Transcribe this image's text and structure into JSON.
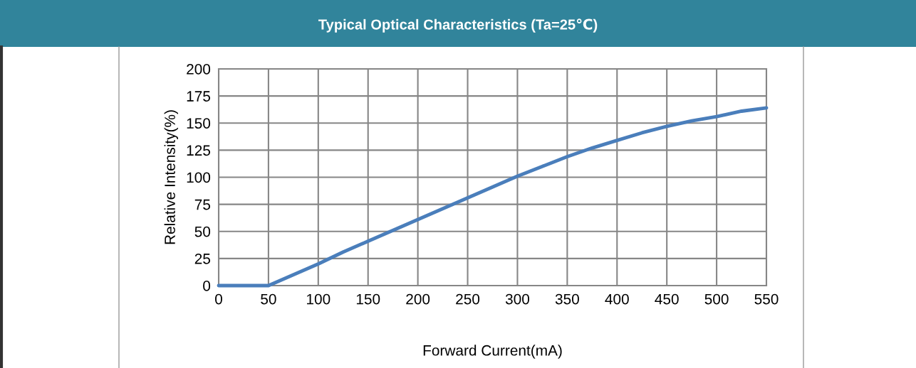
{
  "chart_data": {
    "type": "line",
    "title": "Typical Optical Characteristics (Ta=25℃)",
    "xlabel": "Forward Current(mA)",
    "ylabel": "Relative Intensity(%)",
    "series": [
      {
        "color": "#4a7ebb",
        "x": [
          0,
          25,
          50,
          75,
          100,
          125,
          150,
          175,
          200,
          225,
          250,
          275,
          300,
          325,
          350,
          375,
          400,
          425,
          450,
          475,
          500,
          525,
          550
        ],
        "values": [
          0,
          0,
          0,
          10,
          20,
          31,
          41,
          51,
          61,
          71,
          81,
          91,
          101,
          110,
          119,
          127,
          134,
          141,
          147,
          152,
          156,
          161,
          164
        ]
      }
    ],
    "xlim": [
      0,
      550
    ],
    "ylim": [
      0,
      200
    ],
    "xticks": [
      0,
      50,
      100,
      150,
      200,
      250,
      300,
      350,
      400,
      450,
      500,
      550
    ],
    "yticks": [
      0,
      25,
      50,
      75,
      100,
      125,
      150,
      175,
      200
    ],
    "grid": true,
    "legend": false,
    "marker": "none",
    "line_style": "solid"
  }
}
